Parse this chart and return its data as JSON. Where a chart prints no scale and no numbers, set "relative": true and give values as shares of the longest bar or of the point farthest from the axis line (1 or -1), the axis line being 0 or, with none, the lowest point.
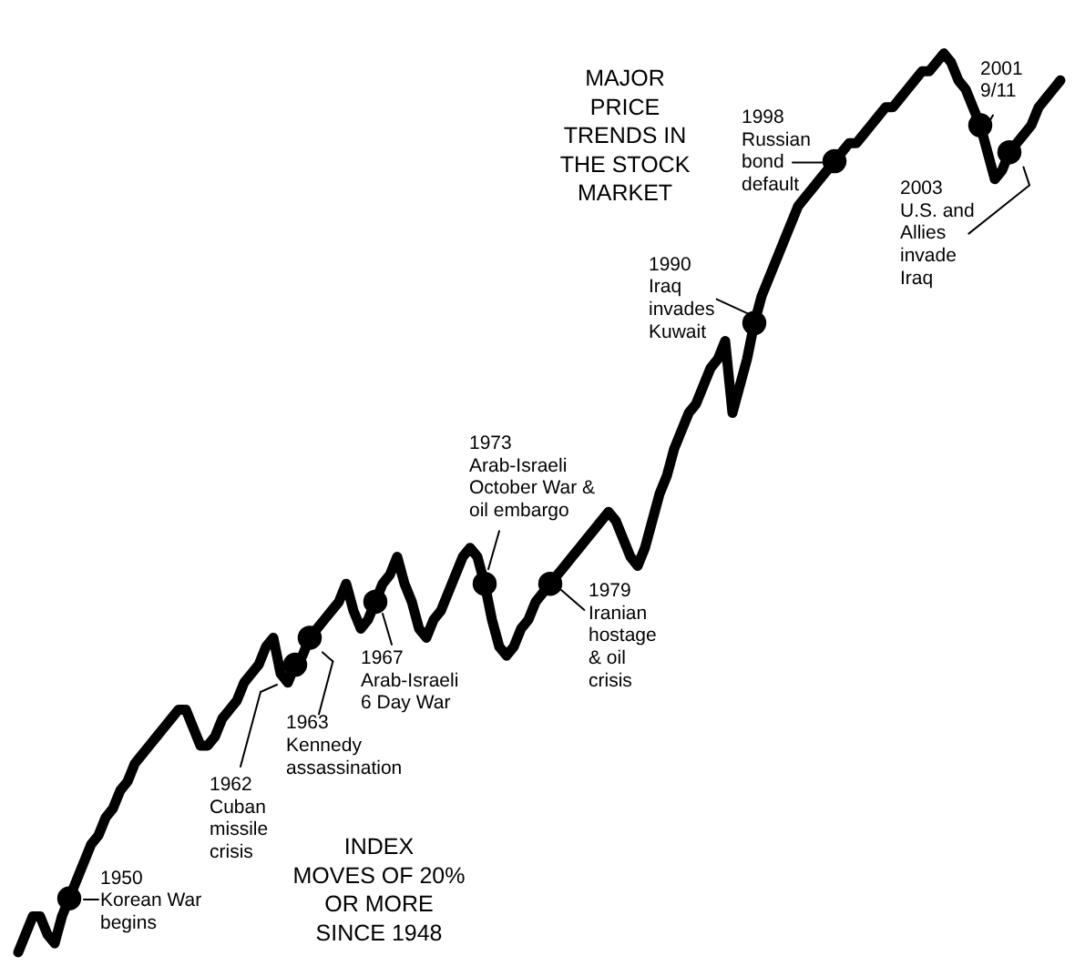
{
  "chart_data": {
    "type": "line",
    "title": "MAJOR\nPRICE\nTRENDS IN\nTHE STOCK\nMARKET",
    "subtitle": "INDEX\nMOVES OF 20%\nOR MORE\nSINCE 1948",
    "relative": true,
    "tick_labels": false,
    "categories": [
      null,
      null,
      null,
      null,
      null,
      null,
      null,
      null,
      null,
      null,
      null,
      null,
      null,
      null,
      null,
      null,
      null,
      null,
      null,
      null,
      null,
      null,
      null,
      null,
      null,
      null,
      null,
      null,
      null,
      null,
      null,
      null,
      null,
      null,
      null,
      null,
      null,
      null,
      null,
      null,
      null,
      null,
      null,
      null,
      null,
      null,
      null,
      null,
      null,
      null,
      null,
      null,
      null,
      null,
      null,
      null,
      null,
      null,
      null,
      null,
      null,
      null,
      null,
      null,
      null,
      null,
      null,
      null,
      null,
      null,
      null,
      null,
      null,
      null,
      null,
      null,
      null,
      null,
      null,
      null,
      null,
      null,
      null,
      null,
      null,
      null,
      null,
      null,
      null,
      null,
      null,
      null,
      null,
      null,
      null,
      null,
      null,
      null,
      null,
      null,
      null,
      null,
      null,
      null,
      null,
      null,
      null,
      null,
      null,
      null,
      null,
      null,
      null,
      null,
      null,
      null,
      null,
      null,
      null,
      null,
      null,
      null,
      null,
      null,
      null,
      null,
      null,
      null,
      null,
      null,
      null,
      null,
      null,
      null,
      null,
      null,
      null,
      null,
      null,
      null,
      null,
      null,
      null,
      null
    ],
    "series": [
      {
        "color": "#000000",
        "values": [
          0.0,
          0.02,
          0.04,
          0.04,
          0.02,
          0.01,
          0.04,
          0.06,
          0.08,
          0.1,
          0.12,
          0.13,
          0.15,
          0.16,
          0.18,
          0.19,
          0.21,
          0.22,
          0.23,
          0.24,
          0.25,
          0.26,
          0.27,
          0.27,
          0.25,
          0.23,
          0.23,
          0.24,
          0.26,
          0.27,
          0.28,
          0.3,
          0.31,
          0.32,
          0.34,
          0.35,
          0.31,
          0.3,
          0.32,
          0.33,
          0.35,
          0.36,
          0.37,
          0.38,
          0.39,
          0.41,
          0.38,
          0.36,
          0.37,
          0.39,
          0.41,
          0.42,
          0.44,
          0.41,
          0.39,
          0.36,
          0.35,
          0.37,
          0.38,
          0.4,
          0.42,
          0.44,
          0.45,
          0.44,
          0.41,
          0.37,
          0.34,
          0.33,
          0.34,
          0.36,
          0.37,
          0.39,
          0.4,
          0.41,
          0.42,
          0.43,
          0.44,
          0.45,
          0.46,
          0.47,
          0.48,
          0.49,
          0.48,
          0.46,
          0.44,
          0.43,
          0.45,
          0.48,
          0.51,
          0.53,
          0.56,
          0.58,
          0.6,
          0.61,
          0.63,
          0.65,
          0.66,
          0.68,
          0.6,
          0.63,
          0.66,
          0.7,
          0.73,
          0.75,
          0.77,
          0.79,
          0.81,
          0.83,
          0.84,
          0.85,
          0.86,
          0.87,
          0.88,
          0.89,
          0.9,
          0.9,
          0.91,
          0.92,
          0.93,
          0.94,
          0.94,
          0.95,
          0.96,
          0.97,
          0.98,
          0.98,
          0.99,
          1.0,
          0.99,
          0.97,
          0.96,
          0.94,
          0.92,
          0.89,
          0.86,
          0.87,
          0.89,
          0.9,
          0.91,
          0.92,
          0.94,
          0.95,
          0.96,
          0.97
        ]
      },
      {
        "color": "#000000",
        "marker": "circle",
        "values": [
          null,
          null,
          null,
          null,
          null,
          null,
          null,
          0.06,
          null,
          null,
          null,
          null,
          null,
          null,
          null,
          null,
          null,
          null,
          null,
          null,
          null,
          null,
          null,
          null,
          null,
          null,
          null,
          null,
          null,
          null,
          null,
          null,
          null,
          null,
          null,
          null,
          null,
          null,
          0.32,
          null,
          0.35,
          null,
          null,
          null,
          null,
          null,
          null,
          null,
          null,
          0.39,
          null,
          null,
          null,
          null,
          null,
          null,
          null,
          null,
          null,
          null,
          null,
          null,
          null,
          null,
          0.41,
          null,
          null,
          null,
          null,
          null,
          null,
          null,
          null,
          0.41,
          null,
          null,
          null,
          null,
          null,
          null,
          null,
          null,
          null,
          null,
          null,
          null,
          null,
          null,
          null,
          null,
          null,
          null,
          null,
          null,
          null,
          null,
          null,
          null,
          null,
          null,
          null,
          0.7,
          null,
          null,
          null,
          null,
          null,
          null,
          null,
          null,
          null,
          null,
          0.88,
          null,
          null,
          null,
          null,
          null,
          null,
          null,
          null,
          null,
          null,
          null,
          null,
          null,
          null,
          null,
          null,
          null,
          null,
          null,
          0.92,
          null,
          null,
          null,
          0.89,
          null,
          null,
          null,
          null,
          null,
          null,
          null
        ]
      }
    ],
    "annotations": [
      "1950\nKorean War\nbegins",
      "1962\nCuban\nmissile\ncrisis",
      "1963\nKennedy\nassassination",
      "1967\nArab-Israeli\n6 Day War",
      "1973\nArab-Israeli\nOctober War &\noil embargo",
      "1979\nIranian\nhostage\n& oil\ncrisis",
      "1990\nIraq\ninvades\nKuwait",
      "1998\nRussian\nbond\ndefault",
      "2001\n9/11",
      "2003\nU.S. and\nAllies\ninvade\nIraq"
    ]
  }
}
